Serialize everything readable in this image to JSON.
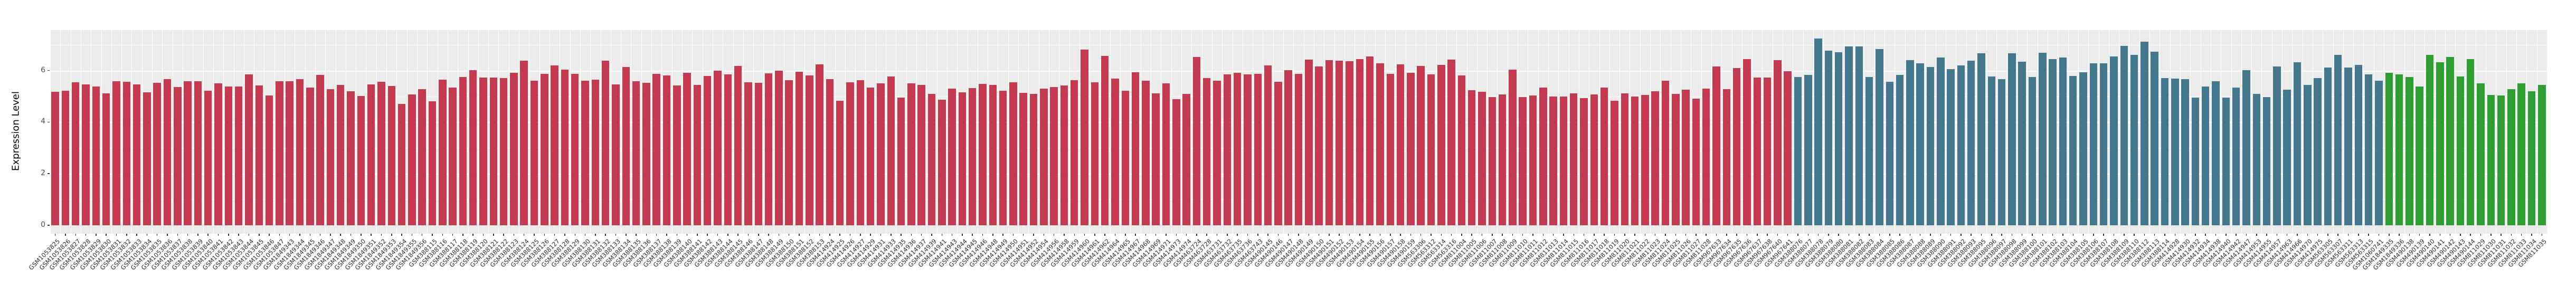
{
  "y_axis": {
    "title": "Expression Level",
    "ticks": [
      "0",
      "2",
      "4",
      "6"
    ]
  },
  "panel": {
    "background": "#EBEBEB",
    "gridline_color": "#FFFFFF"
  },
  "chart_data": {
    "type": "bar",
    "title": "",
    "xlabel": "",
    "ylabel": "Expression Level",
    "ylim": [
      0,
      7.6
    ],
    "yticks": [
      0,
      2,
      4,
      6
    ],
    "grid": "on",
    "legend": "none",
    "series": [
      {
        "name": "group-1-red",
        "color": "#C43A50",
        "labels": [
          "GSM1053825",
          "GSM1053826",
          "GSM1053827",
          "GSM1053828",
          "GSM1053829",
          "GSM1053830",
          "GSM1053831",
          "GSM1053832",
          "GSM1053833",
          "GSM1053834",
          "GSM1053835",
          "GSM1053836",
          "GSM1053837",
          "GSM1053838",
          "GSM1053839",
          "GSM1053840",
          "GSM1053841",
          "GSM1053842",
          "GSM1053843",
          "GSM1053844",
          "GSM1053845",
          "GSM1053846",
          "GSM1053847",
          "GSM1849343",
          "GSM1849344",
          "GSM1849345",
          "GSM1849346",
          "GSM1849347",
          "GSM1849348",
          "GSM1849349",
          "GSM1849350",
          "GSM1849351",
          "GSM1849352",
          "GSM1849353",
          "GSM1849354",
          "GSM1849355",
          "GSM1849356",
          "GSM388115",
          "GSM388116",
          "GSM388117",
          "GSM388118",
          "GSM388119",
          "GSM388120",
          "GSM388121",
          "GSM388122",
          "GSM388123",
          "GSM388124",
          "GSM388125",
          "GSM388126",
          "GSM388127",
          "GSM388128",
          "GSM388129",
          "GSM388130",
          "GSM388131",
          "GSM388132",
          "GSM388133",
          "GSM388134",
          "GSM388135",
          "GSM388136",
          "GSM388137",
          "GSM388138",
          "GSM388139",
          "GSM388140",
          "GSM388141",
          "GSM388142",
          "GSM388143",
          "GSM388144",
          "GSM388145",
          "GSM388146",
          "GSM388147",
          "GSM388148",
          "GSM388149",
          "GSM388150",
          "GSM388151",
          "GSM388152",
          "GSM388153",
          "GSM414924",
          "GSM414925",
          "GSM414926",
          "GSM414927",
          "GSM414929",
          "GSM414931",
          "GSM414933",
          "GSM414935",
          "GSM414936",
          "GSM414937",
          "GSM414939",
          "GSM414941",
          "GSM414943",
          "GSM414944",
          "GSM414945",
          "GSM414946",
          "GSM414948",
          "GSM414949",
          "GSM414950",
          "GSM414951",
          "GSM414952",
          "GSM414954",
          "GSM414956",
          "GSM414958",
          "GSM414959",
          "GSM414960",
          "GSM414961",
          "GSM414962",
          "GSM414964",
          "GSM414965",
          "GSM414967",
          "GSM414968",
          "GSM414969",
          "GSM414971",
          "GSM414973",
          "GSM414974",
          "GSM463724",
          "GSM463728",
          "GSM463731",
          "GSM463732",
          "GSM463735",
          "GSM463736",
          "GSM463743",
          "GSM490145",
          "GSM490146",
          "GSM490147",
          "GSM490148",
          "GSM490149",
          "GSM490150",
          "GSM490151",
          "GSM490152",
          "GSM490153",
          "GSM490154",
          "GSM490155",
          "GSM490156",
          "GSM490157",
          "GSM490158",
          "GSM490159",
          "GSM563306",
          "GSM563312",
          "GSM563314",
          "GSM563316",
          "GSM811004",
          "GSM811005",
          "GSM811006",
          "GSM811007",
          "GSM811008",
          "GSM811009",
          "GSM811010",
          "GSM811011",
          "GSM811012",
          "GSM811013",
          "GSM811014",
          "GSM811015",
          "GSM811016",
          "GSM811017",
          "GSM811018",
          "GSM811019",
          "GSM811020",
          "GSM811021",
          "GSM811022",
          "GSM811023",
          "GSM811024",
          "GSM811025",
          "GSM811026",
          "GSM811027",
          "GSM811028",
          "GSM967633",
          "GSM967634",
          "GSM967635",
          "GSM967636",
          "GSM967637",
          "GSM967638",
          "GSM967640",
          "GSM967641"
        ],
        "values": [
          5.17,
          5.22,
          5.55,
          5.46,
          5.37,
          5.11,
          5.59,
          5.56,
          5.47,
          5.16,
          5.52,
          5.66,
          5.36,
          5.59,
          5.59,
          5.22,
          5.5,
          5.38,
          5.38,
          5.84,
          5.41,
          5.03,
          5.58,
          5.59,
          5.67,
          5.34,
          5.82,
          5.27,
          5.44,
          5.2,
          5.02,
          5.46,
          5.57,
          5.4,
          4.71,
          5.07,
          5.27,
          4.8,
          5.65,
          5.34,
          5.74,
          6.02,
          5.72,
          5.72,
          5.71,
          5.91,
          6.39,
          5.6,
          5.86,
          6.19,
          6.04,
          5.87,
          5.6,
          5.65,
          6.39,
          5.47,
          6.13,
          5.58,
          5.53,
          5.87,
          5.8,
          5.41,
          5.91,
          5.43,
          5.79,
          6.0,
          5.85,
          6.17,
          5.55,
          5.53,
          5.89,
          5.99,
          5.63,
          5.96,
          5.81,
          6.23,
          5.67,
          4.82,
          5.55,
          5.63,
          5.34,
          5.51,
          5.77,
          4.95,
          5.5,
          5.43,
          5.1,
          4.86,
          5.29,
          5.16,
          5.31,
          5.48,
          5.44,
          5.21,
          5.55,
          5.14,
          5.09,
          5.29,
          5.36,
          5.41,
          5.63,
          6.8,
          5.55,
          6.57,
          5.68,
          5.21,
          5.93,
          5.61,
          5.12,
          5.5,
          4.89,
          5.1,
          6.52,
          5.7,
          5.6,
          5.85,
          5.92,
          5.85,
          5.86,
          6.2,
          5.57,
          6.01,
          5.87,
          6.42,
          6.16,
          6.4,
          6.39,
          6.36,
          6.45,
          6.54,
          6.28,
          5.87,
          6.23,
          5.92,
          6.18,
          5.84,
          6.21,
          6.42,
          5.81,
          5.23,
          5.18,
          4.97,
          5.08,
          6.04,
          4.97,
          5.03,
          5.34,
          5.0,
          4.99,
          5.12,
          4.93,
          5.07,
          5.34,
          4.82,
          5.11,
          5.0,
          5.06,
          5.19,
          5.6,
          5.09,
          5.26,
          4.9,
          5.29,
          6.16,
          5.27,
          6.09,
          6.45,
          5.72,
          5.72,
          6.41,
          5.98
        ]
      },
      {
        "name": "group-2-teal",
        "color": "#43788C",
        "labels": [
          "GSM388076",
          "GSM388077",
          "GSM388078",
          "GSM388079",
          "GSM388080",
          "GSM388081",
          "GSM388082",
          "GSM388083",
          "GSM388084",
          "GSM388085",
          "GSM388086",
          "GSM388087",
          "GSM388088",
          "GSM388089",
          "GSM388090",
          "GSM388091",
          "GSM388092",
          "GSM388093",
          "GSM388095",
          "GSM388096",
          "GSM388097",
          "GSM388098",
          "GSM388099",
          "GSM388100",
          "GSM388101",
          "GSM388102",
          "GSM388103",
          "GSM388104",
          "GSM388105",
          "GSM388106",
          "GSM388107",
          "GSM388108",
          "GSM388109",
          "GSM388110",
          "GSM388112",
          "GSM388113",
          "GSM388114",
          "GSM414928",
          "GSM414930",
          "GSM414932",
          "GSM414934",
          "GSM414938",
          "GSM414940",
          "GSM414942",
          "GSM414947",
          "GSM414953",
          "GSM414955",
          "GSM414957",
          "GSM414963",
          "GSM414966",
          "GSM414970",
          "GSM414975",
          "GSM563305",
          "GSM563307",
          "GSM563311",
          "GSM563313",
          "GSM563315",
          "GSM1060741"
        ],
        "values": [
          5.75,
          5.83,
          7.24,
          6.77,
          6.71,
          6.94,
          6.94,
          5.75,
          6.84,
          5.57,
          5.82,
          6.4,
          6.28,
          6.13,
          6.5,
          6.06,
          6.19,
          6.39,
          6.67,
          5.77,
          5.66,
          6.66,
          6.33,
          5.75,
          6.69,
          6.45,
          6.51,
          5.79,
          5.94,
          6.27,
          6.27,
          6.55,
          6.95,
          6.61,
          7.11,
          6.73,
          5.7,
          5.68,
          5.66,
          4.95,
          5.38,
          5.58,
          4.95,
          5.33,
          6.01,
          5.09,
          4.97,
          6.15,
          5.26,
          6.32,
          5.43,
          5.71,
          6.11,
          6.6,
          6.11,
          6.21,
          5.85,
          5.6
        ]
      },
      {
        "name": "group-3-green",
        "color": "#2F9E32",
        "labels": [
          "GSM1849335",
          "GSM1849336",
          "GSM490138",
          "GSM490139",
          "GSM490140",
          "GSM490141",
          "GSM490142",
          "GSM490143",
          "GSM490144",
          "GSM811029",
          "GSM811030",
          "GSM811031",
          "GSM811032",
          "GSM811033",
          "GSM811034",
          "GSM811035"
        ],
        "values": [
          5.91,
          5.84,
          5.75,
          5.38,
          6.6,
          6.32,
          6.52,
          5.77,
          6.45,
          5.51,
          5.06,
          5.03,
          5.27,
          5.5,
          5.2,
          5.43
        ]
      }
    ]
  }
}
